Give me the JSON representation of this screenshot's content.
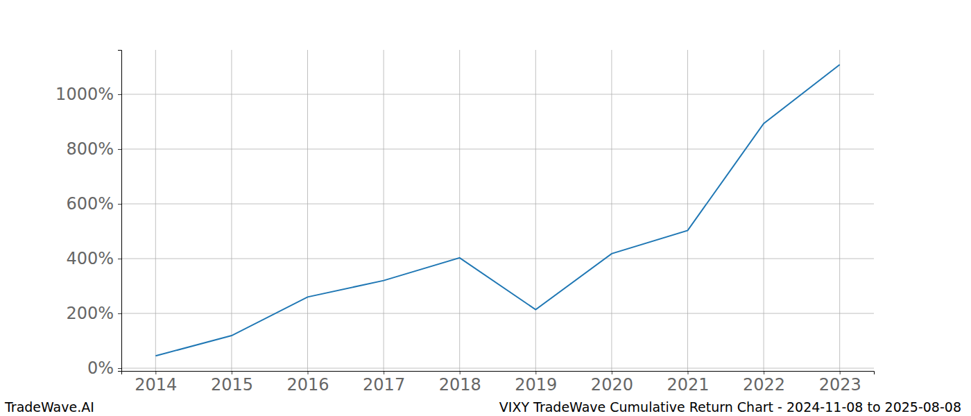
{
  "chart_data": {
    "type": "line",
    "title": "VIXY TradeWave Cumulative Return Chart - 2024-11-08 to 2025-08-08",
    "annotations": [
      "TradeWave.AI"
    ],
    "x": [
      2014,
      2015,
      2016,
      2017,
      2018,
      2019,
      2020,
      2021,
      2022,
      2023
    ],
    "values": [
      45,
      119,
      260,
      320,
      403,
      214,
      418,
      503,
      893,
      1108
    ],
    "color": "#1f77b4",
    "xlim": [
      2013.55,
      2023.45
    ],
    "xticks": [
      2014,
      2015,
      2016,
      2017,
      2018,
      2019,
      2020,
      2021,
      2022,
      2023
    ],
    "ylim": [
      -10,
      1162
    ],
    "yticks": [
      {
        "value": 0,
        "label": "0%"
      },
      {
        "value": 200,
        "label": "200%"
      },
      {
        "value": 400,
        "label": "400%"
      },
      {
        "value": 600,
        "label": "600%"
      },
      {
        "value": 800,
        "label": "800%"
      },
      {
        "value": 1000,
        "label": "1000%"
      }
    ],
    "grid": true
  }
}
